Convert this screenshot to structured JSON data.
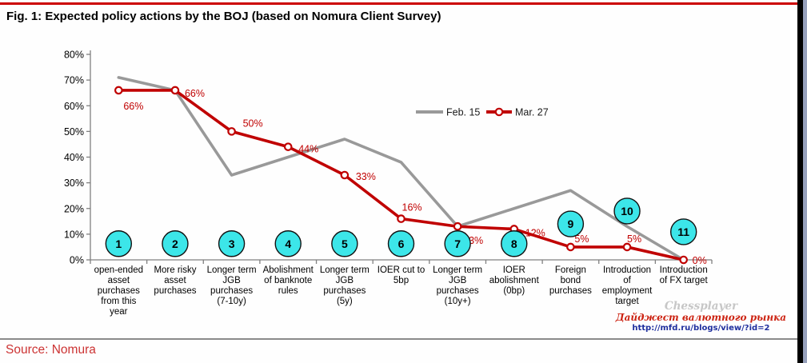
{
  "header": {
    "title": "Fig. 1: Expected policy actions by the BOJ (based on Nomura Client Survey)"
  },
  "footer": {
    "source": "Source: Nomura"
  },
  "watermark": {
    "brand": "Chessplayer",
    "subtitle": "Дайджест валютного рынка",
    "url": "http://mfd.ru/blogs/view/?id=2"
  },
  "colors": {
    "accent_red": "#c00000",
    "series_gray": "#999999",
    "badge_fill": "#3ce6e9",
    "axis_gray": "#808080",
    "top_rule_red": "#cc0000",
    "source_red": "#cc3333",
    "frame_black": "#000000",
    "frame_slate": "#96a0bb"
  },
  "chart_data": {
    "type": "line",
    "title": "Expected policy actions by the BOJ (based on Nomura Client Survey)",
    "xlabel": "",
    "ylabel": "",
    "ylim": [
      0,
      80
    ],
    "ytick_step": 10,
    "ytick_suffix": "%",
    "grid": false,
    "legend_position": "top-center",
    "categories": [
      {
        "badge": "1",
        "badge_y": 6.3,
        "lines": [
          "open-ended",
          "asset",
          "purchases",
          "from this",
          "year"
        ]
      },
      {
        "badge": "2",
        "badge_y": 6.3,
        "lines": [
          "More risky",
          "asset",
          "purchases"
        ]
      },
      {
        "badge": "3",
        "badge_y": 6.3,
        "lines": [
          "Longer term",
          "JGB",
          "purchases",
          "(7-10y)"
        ]
      },
      {
        "badge": "4",
        "badge_y": 6.3,
        "lines": [
          "Abolishment",
          "of banknote",
          "rules"
        ]
      },
      {
        "badge": "5",
        "badge_y": 6.3,
        "lines": [
          "Longer term",
          "JGB",
          "purchases",
          "(5y)"
        ]
      },
      {
        "badge": "6",
        "badge_y": 6.3,
        "lines": [
          "IOER cut to",
          "5bp"
        ]
      },
      {
        "badge": "7",
        "badge_y": 6.3,
        "lines": [
          "Longer term",
          "JGB",
          "purchases",
          "(10y+)"
        ]
      },
      {
        "badge": "8",
        "badge_y": 6.3,
        "lines": [
          "IOER",
          "abolishment",
          "(0bp)"
        ]
      },
      {
        "badge": "9",
        "badge_y": 14.0,
        "lines": [
          "Foreign",
          "bond",
          "purchases"
        ]
      },
      {
        "badge": "10",
        "badge_y": 19.0,
        "lines": [
          "Introduction",
          "of",
          "employment",
          "target"
        ]
      },
      {
        "badge": "11",
        "badge_y": 10.9,
        "lines": [
          "Introduction",
          "of FX target"
        ]
      }
    ],
    "series": [
      {
        "name": "Feb. 15",
        "color_key": "series_gray",
        "markers": false,
        "show_labels": false,
        "values": [
          71,
          66,
          33,
          40,
          47,
          38,
          13,
          20,
          27,
          13,
          0
        ]
      },
      {
        "name": "Mar. 27",
        "color_key": "accent_red",
        "markers": true,
        "show_labels": true,
        "values": [
          66,
          66,
          50,
          44,
          33,
          16,
          13,
          12,
          5,
          5,
          0
        ],
        "labels": [
          "66%",
          "66%",
          "50%",
          "44%",
          "33%",
          "16%",
          "13%",
          "12%",
          "5%",
          "5%",
          "0%"
        ],
        "label_offsets": [
          [
            6,
            24
          ],
          [
            12,
            8
          ],
          [
            14,
            -6
          ],
          [
            13,
            7
          ],
          [
            14,
            6
          ],
          [
            1,
            -10
          ],
          [
            7,
            22
          ],
          [
            14,
            9
          ],
          [
            5,
            -6
          ],
          [
            0,
            -6
          ],
          [
            11,
            5
          ]
        ]
      }
    ]
  }
}
